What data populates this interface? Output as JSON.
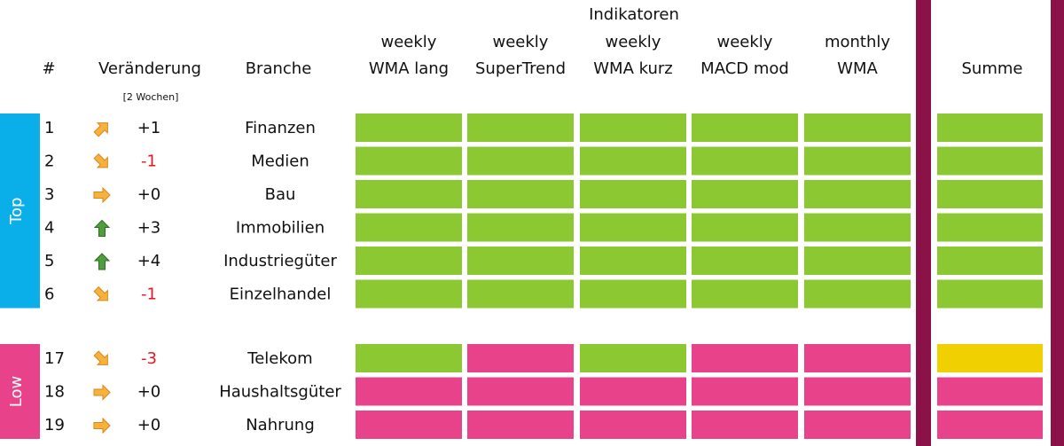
{
  "header": {
    "rank": "#",
    "change": "Veränderung",
    "change_note": "[2 Wochen]",
    "sector": "Branche",
    "indicator_group": "Indikatoren",
    "indicators": [
      [
        "weekly",
        "WMA lang"
      ],
      [
        "weekly",
        "SuperTrend"
      ],
      [
        "weekly",
        "WMA kurz"
      ],
      [
        "weekly",
        "MACD mod"
      ],
      [
        "monthly",
        "WMA"
      ]
    ],
    "sum": "Summe"
  },
  "groups": [
    {
      "label": "Top",
      "color": "#0aaee8",
      "rows": [
        {
          "rank": 1,
          "arrow": "up-right",
          "change": "+1",
          "sector": "Finanzen",
          "signals": [
            "#8cc832",
            "#8cc832",
            "#8cc832",
            "#8cc832",
            "#8cc832"
          ],
          "sum": "#8cc832"
        },
        {
          "rank": 2,
          "arrow": "down-right",
          "change": "-1",
          "sector": "Medien",
          "signals": [
            "#8cc832",
            "#8cc832",
            "#8cc832",
            "#8cc832",
            "#8cc832"
          ],
          "sum": "#8cc832"
        },
        {
          "rank": 3,
          "arrow": "right",
          "change": "+0",
          "sector": "Bau",
          "signals": [
            "#8cc832",
            "#8cc832",
            "#8cc832",
            "#8cc832",
            "#8cc832"
          ],
          "sum": "#8cc832"
        },
        {
          "rank": 4,
          "arrow": "up",
          "change": "+3",
          "sector": "Immobilien",
          "signals": [
            "#8cc832",
            "#8cc832",
            "#8cc832",
            "#8cc832",
            "#8cc832"
          ],
          "sum": "#8cc832"
        },
        {
          "rank": 5,
          "arrow": "up",
          "change": "+4",
          "sector": "Industriegüter",
          "signals": [
            "#8cc832",
            "#8cc832",
            "#8cc832",
            "#8cc832",
            "#8cc832"
          ],
          "sum": "#8cc832"
        },
        {
          "rank": 6,
          "arrow": "down-right",
          "change": "-1",
          "sector": "Einzelhandel",
          "signals": [
            "#8cc832",
            "#8cc832",
            "#8cc832",
            "#8cc832",
            "#8cc832"
          ],
          "sum": "#8cc832"
        }
      ]
    },
    {
      "label": "Low",
      "color": "#e8438a",
      "rows": [
        {
          "rank": 17,
          "arrow": "down-right",
          "change": "-3",
          "sector": "Telekom",
          "signals": [
            "#8cc832",
            "#e8438a",
            "#8cc832",
            "#e8438a",
            "#e8438a"
          ],
          "sum": "#f0d000"
        },
        {
          "rank": 18,
          "arrow": "right",
          "change": "+0",
          "sector": "Haushaltsgüter",
          "signals": [
            "#e8438a",
            "#e8438a",
            "#e8438a",
            "#e8438a",
            "#e8438a"
          ],
          "sum": "#e8438a"
        },
        {
          "rank": 19,
          "arrow": "right",
          "change": "+0",
          "sector": "Nahrung",
          "signals": [
            "#e8438a",
            "#e8438a",
            "#e8438a",
            "#e8438a",
            "#e8438a"
          ],
          "sum": "#e8438a"
        }
      ]
    }
  ]
}
